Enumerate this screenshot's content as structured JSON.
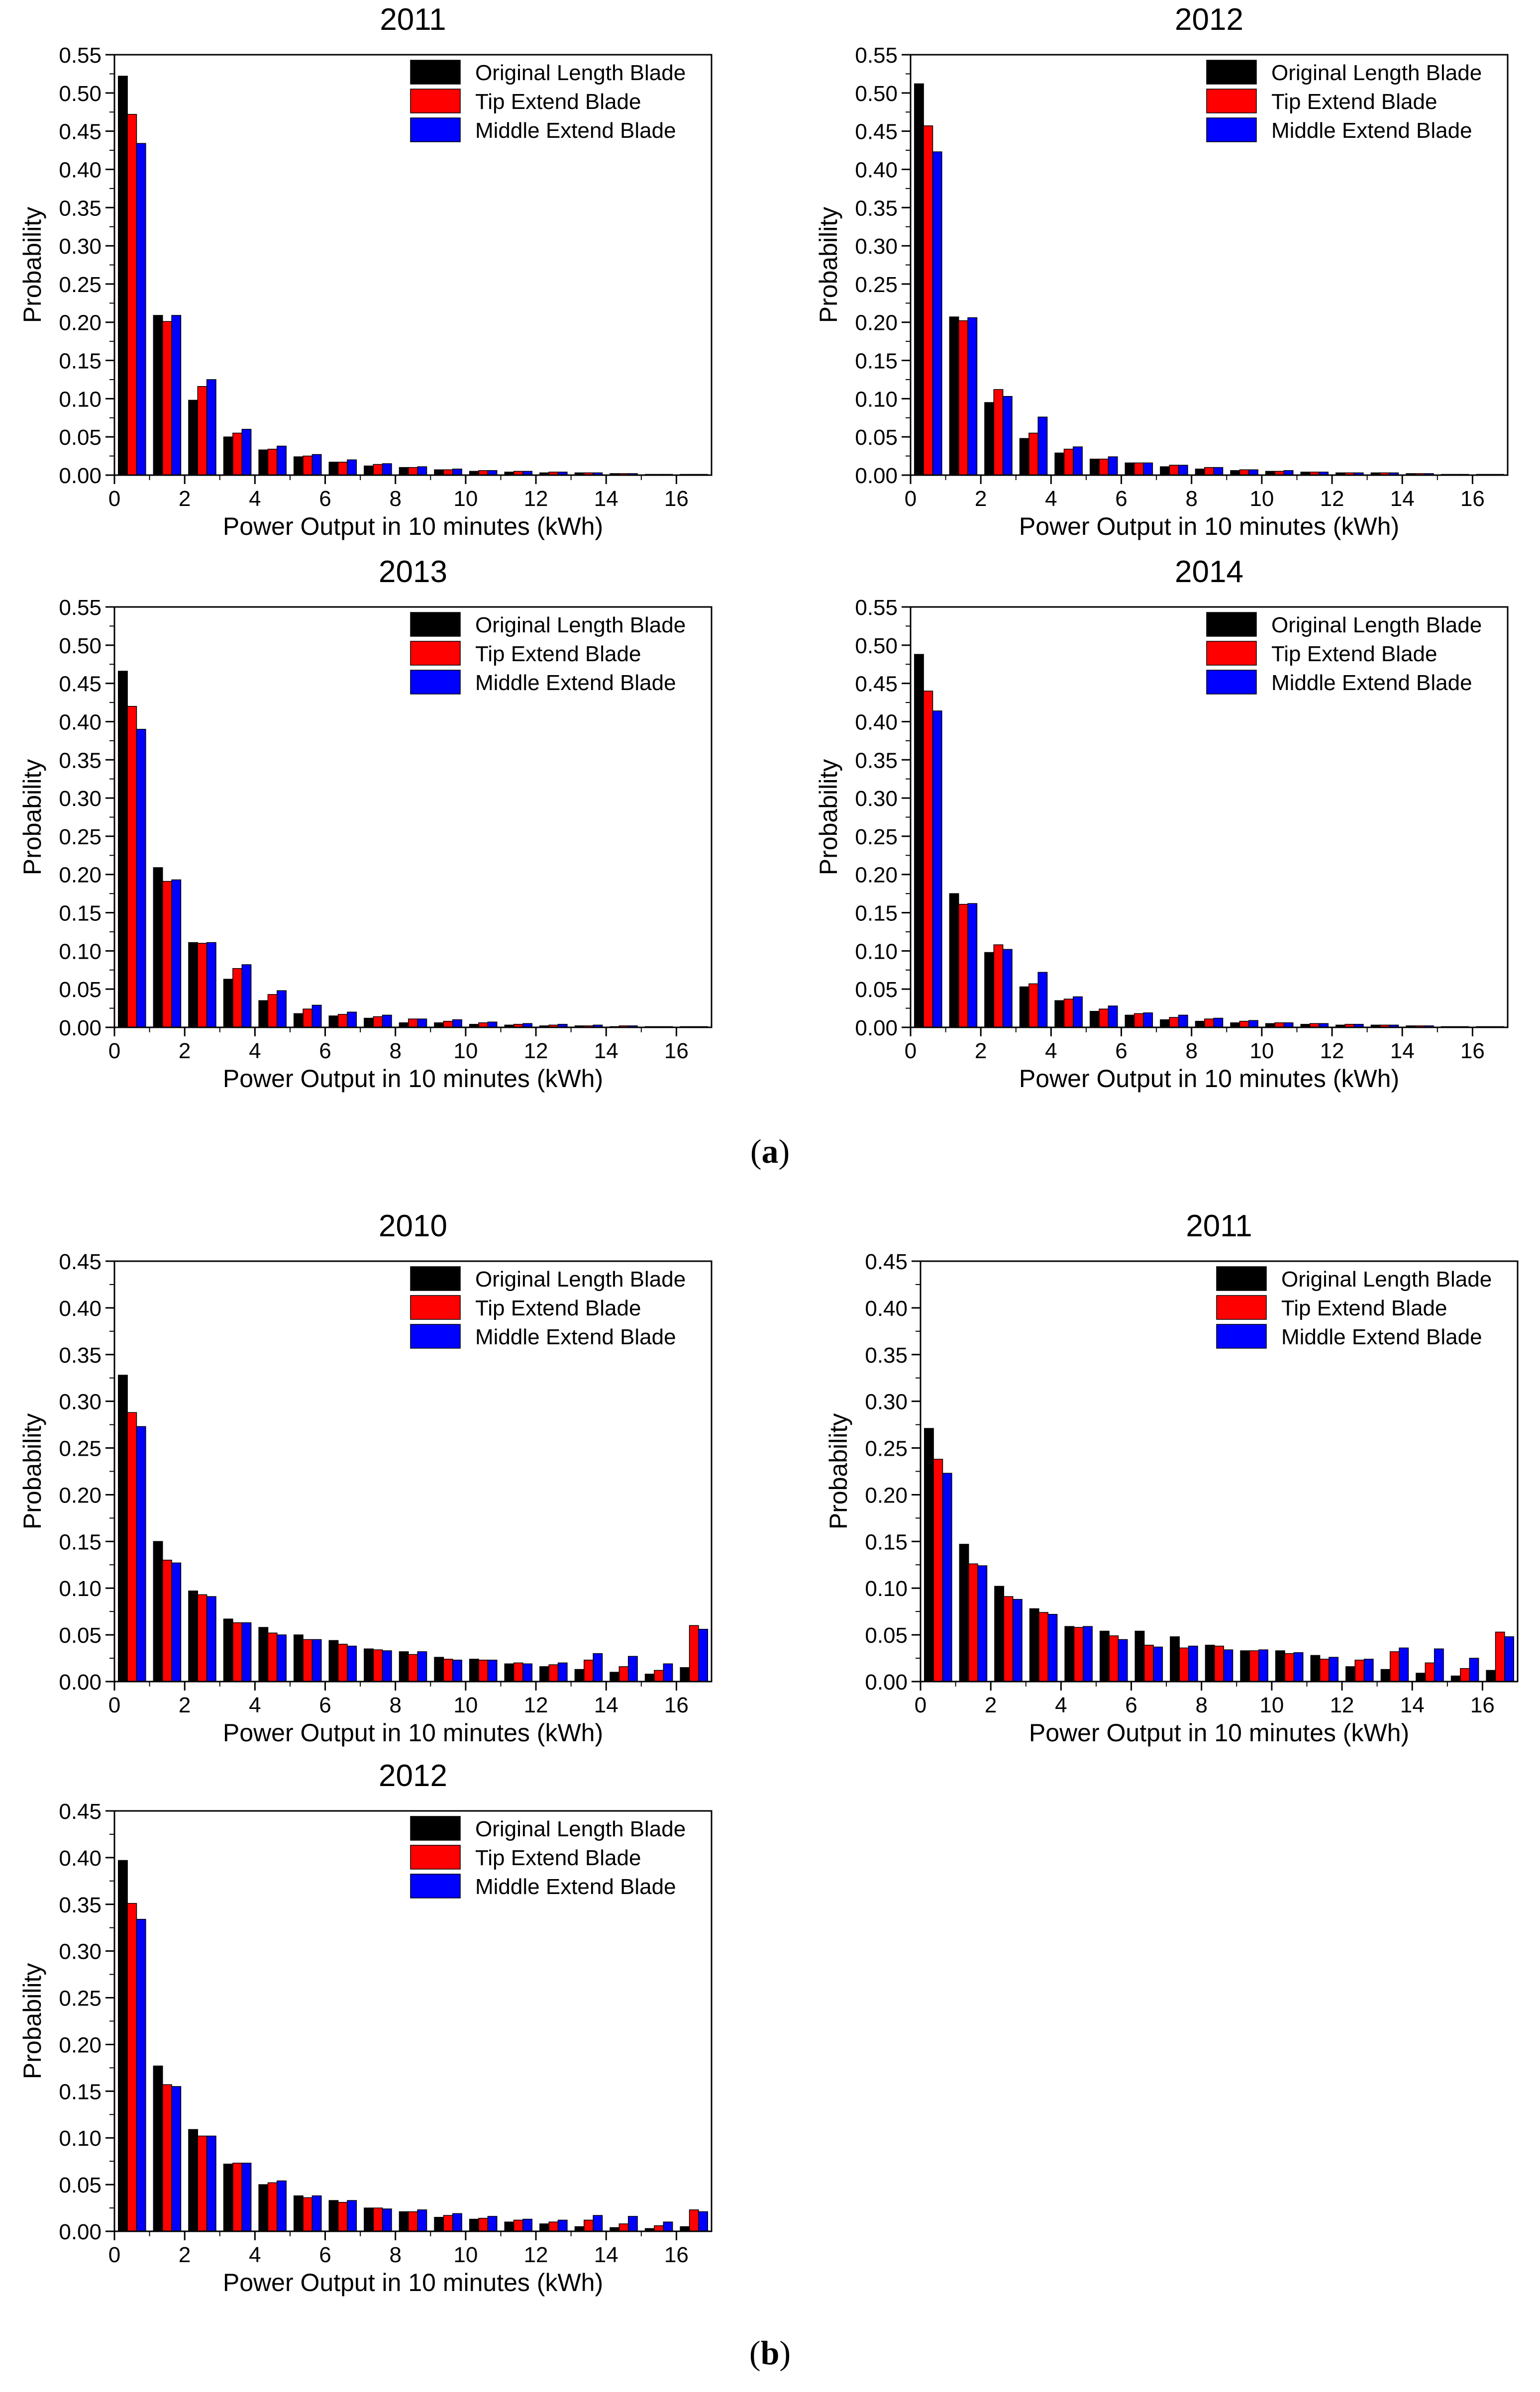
{
  "colors": {
    "series": [
      "#000000",
      "#ff0000",
      "#0000ff"
    ],
    "axis": "#000000"
  },
  "parts": [
    {
      "open": "(",
      "letter": "a",
      "close": ")"
    },
    {
      "open": "(",
      "letter": "b",
      "close": ")"
    }
  ],
  "chart_data": [
    {
      "type": "bar",
      "title": "2011",
      "xlabel": "Power Output in 10 minutes (kWh)",
      "ylabel": "Probability",
      "xlim": [
        0,
        17
      ],
      "ylim": [
        0,
        0.55
      ],
      "xticks": [
        0,
        2,
        4,
        6,
        8,
        10,
        12,
        14,
        16
      ],
      "yticks": [
        "0.00",
        "0.05",
        "0.10",
        "0.15",
        "0.20",
        "0.25",
        "0.30",
        "0.35",
        "0.40",
        "0.45",
        "0.50",
        "0.55"
      ],
      "x": [
        0.5,
        1.5,
        2.5,
        3.5,
        4.5,
        5.5,
        6.5,
        7.5,
        8.5,
        9.5,
        10.5,
        11.5,
        12.5,
        13.5,
        14.5,
        15.5,
        16.5
      ],
      "legend": "top-right",
      "grid": false,
      "series": [
        {
          "name": "Original Length Blade",
          "values": [
            0.522,
            0.209,
            0.098,
            0.05,
            0.033,
            0.024,
            0.017,
            0.012,
            0.01,
            0.007,
            0.005,
            0.004,
            0.003,
            0.003,
            0.002,
            0.001,
            0.001
          ]
        },
        {
          "name": "Tip Extend Blade",
          "values": [
            0.472,
            0.201,
            0.116,
            0.055,
            0.034,
            0.025,
            0.017,
            0.014,
            0.01,
            0.007,
            0.006,
            0.005,
            0.004,
            0.003,
            0.002,
            0.001,
            0.001
          ]
        },
        {
          "name": "Middle Extend Blade",
          "values": [
            0.434,
            0.209,
            0.125,
            0.06,
            0.038,
            0.027,
            0.02,
            0.015,
            0.011,
            0.008,
            0.006,
            0.005,
            0.004,
            0.003,
            0.002,
            0.001,
            0.001
          ]
        }
      ]
    },
    {
      "type": "bar",
      "title": "2012",
      "xlabel": "Power Output in 10 minutes (kWh)",
      "ylabel": "Probability",
      "xlim": [
        0,
        17
      ],
      "ylim": [
        0,
        0.55
      ],
      "xticks": [
        0,
        2,
        4,
        6,
        8,
        10,
        12,
        14,
        16
      ],
      "yticks": [
        "0.00",
        "0.05",
        "0.10",
        "0.15",
        "0.20",
        "0.25",
        "0.30",
        "0.35",
        "0.40",
        "0.45",
        "0.50",
        "0.55"
      ],
      "x": [
        0.5,
        1.5,
        2.5,
        3.5,
        4.5,
        5.5,
        6.5,
        7.5,
        8.5,
        9.5,
        10.5,
        11.5,
        12.5,
        13.5,
        14.5,
        15.5,
        16.5
      ],
      "legend": "top-right",
      "grid": false,
      "series": [
        {
          "name": "Original Length Blade",
          "values": [
            0.512,
            0.207,
            0.095,
            0.048,
            0.029,
            0.021,
            0.016,
            0.011,
            0.008,
            0.006,
            0.005,
            0.004,
            0.003,
            0.003,
            0.002,
            0.001,
            0.001
          ]
        },
        {
          "name": "Tip Extend Blade",
          "values": [
            0.457,
            0.202,
            0.112,
            0.055,
            0.034,
            0.021,
            0.016,
            0.013,
            0.01,
            0.007,
            0.005,
            0.004,
            0.003,
            0.003,
            0.002,
            0.001,
            0.001
          ]
        },
        {
          "name": "Middle Extend Blade",
          "values": [
            0.423,
            0.206,
            0.103,
            0.076,
            0.037,
            0.024,
            0.016,
            0.013,
            0.01,
            0.007,
            0.006,
            0.004,
            0.003,
            0.003,
            0.002,
            0.001,
            0.001
          ]
        }
      ]
    },
    {
      "type": "bar",
      "title": "2013",
      "xlabel": "Power Output in 10 minutes (kWh)",
      "ylabel": "Probability",
      "xlim": [
        0,
        17
      ],
      "ylim": [
        0,
        0.55
      ],
      "xticks": [
        0,
        2,
        4,
        6,
        8,
        10,
        12,
        14,
        16
      ],
      "yticks": [
        "0.00",
        "0.05",
        "0.10",
        "0.15",
        "0.20",
        "0.25",
        "0.30",
        "0.35",
        "0.40",
        "0.45",
        "0.50",
        "0.55"
      ],
      "x": [
        0.5,
        1.5,
        2.5,
        3.5,
        4.5,
        5.5,
        6.5,
        7.5,
        8.5,
        9.5,
        10.5,
        11.5,
        12.5,
        13.5,
        14.5,
        15.5,
        16.5
      ],
      "legend": "top-right",
      "grid": false,
      "series": [
        {
          "name": "Original Length Blade",
          "values": [
            0.466,
            0.209,
            0.111,
            0.063,
            0.035,
            0.018,
            0.015,
            0.012,
            0.006,
            0.006,
            0.004,
            0.003,
            0.002,
            0.002,
            0.001,
            0.001,
            0.001
          ]
        },
        {
          "name": "Tip Extend Blade",
          "values": [
            0.42,
            0.191,
            0.11,
            0.077,
            0.043,
            0.024,
            0.017,
            0.014,
            0.011,
            0.008,
            0.006,
            0.004,
            0.003,
            0.002,
            0.002,
            0.001,
            0.001
          ]
        },
        {
          "name": "Middle Extend Blade",
          "values": [
            0.39,
            0.193,
            0.111,
            0.082,
            0.048,
            0.029,
            0.02,
            0.016,
            0.011,
            0.01,
            0.007,
            0.005,
            0.004,
            0.003,
            0.002,
            0.001,
            0.001
          ]
        }
      ]
    },
    {
      "type": "bar",
      "title": "2014",
      "xlabel": "Power Output in 10 minutes (kWh)",
      "ylabel": "Probability",
      "xlim": [
        0,
        17
      ],
      "ylim": [
        0,
        0.55
      ],
      "xticks": [
        0,
        2,
        4,
        6,
        8,
        10,
        12,
        14,
        16
      ],
      "yticks": [
        "0.00",
        "0.05",
        "0.10",
        "0.15",
        "0.20",
        "0.25",
        "0.30",
        "0.35",
        "0.40",
        "0.45",
        "0.50",
        "0.55"
      ],
      "x": [
        0.5,
        1.5,
        2.5,
        3.5,
        4.5,
        5.5,
        6.5,
        7.5,
        8.5,
        9.5,
        10.5,
        11.5,
        12.5,
        13.5,
        14.5,
        15.5,
        16.5
      ],
      "legend": "top-right",
      "grid": false,
      "series": [
        {
          "name": "Original Length Blade",
          "values": [
            0.488,
            0.175,
            0.098,
            0.053,
            0.035,
            0.021,
            0.016,
            0.01,
            0.008,
            0.006,
            0.005,
            0.004,
            0.003,
            0.003,
            0.002,
            0.001,
            0.001
          ]
        },
        {
          "name": "Tip Extend Blade",
          "values": [
            0.44,
            0.161,
            0.108,
            0.057,
            0.037,
            0.024,
            0.018,
            0.013,
            0.011,
            0.008,
            0.006,
            0.005,
            0.004,
            0.003,
            0.002,
            0.001,
            0.001
          ]
        },
        {
          "name": "Middle Extend Blade",
          "values": [
            0.414,
            0.162,
            0.102,
            0.072,
            0.04,
            0.028,
            0.019,
            0.016,
            0.012,
            0.009,
            0.006,
            0.005,
            0.004,
            0.003,
            0.002,
            0.001,
            0.001
          ]
        }
      ]
    },
    {
      "type": "bar",
      "title": "2010",
      "xlabel": "Power Output in 10 minutes (kWh)",
      "ylabel": "Probability",
      "xlim": [
        0,
        17
      ],
      "ylim": [
        0,
        0.45
      ],
      "xticks": [
        0,
        2,
        4,
        6,
        8,
        10,
        12,
        14,
        16
      ],
      "yticks": [
        "0.00",
        "0.05",
        "0.10",
        "0.15",
        "0.20",
        "0.25",
        "0.30",
        "0.35",
        "0.40",
        "0.45"
      ],
      "x": [
        0.5,
        1.5,
        2.5,
        3.5,
        4.5,
        5.5,
        6.5,
        7.5,
        8.5,
        9.5,
        10.5,
        11.5,
        12.5,
        13.5,
        14.5,
        15.5,
        16.5
      ],
      "legend": "top-right",
      "grid": false,
      "series": [
        {
          "name": "Original Length Blade",
          "values": [
            0.328,
            0.15,
            0.097,
            0.067,
            0.058,
            0.05,
            0.044,
            0.035,
            0.032,
            0.026,
            0.024,
            0.019,
            0.016,
            0.013,
            0.01,
            0.008,
            0.015
          ]
        },
        {
          "name": "Tip Extend Blade",
          "values": [
            0.288,
            0.13,
            0.093,
            0.063,
            0.052,
            0.045,
            0.04,
            0.034,
            0.029,
            0.024,
            0.023,
            0.02,
            0.018,
            0.023,
            0.016,
            0.012,
            0.06
          ]
        },
        {
          "name": "Middle Extend Blade",
          "values": [
            0.273,
            0.127,
            0.091,
            0.063,
            0.05,
            0.045,
            0.038,
            0.033,
            0.032,
            0.023,
            0.023,
            0.019,
            0.02,
            0.03,
            0.027,
            0.019,
            0.056
          ]
        }
      ]
    },
    {
      "type": "bar",
      "title": "2011",
      "xlabel": "Power Output in 10 minutes (kWh)",
      "ylabel": "Probability",
      "xlim": [
        0,
        17
      ],
      "ylim": [
        0,
        0.45
      ],
      "xticks": [
        0,
        2,
        4,
        6,
        8,
        10,
        12,
        14,
        16
      ],
      "yticks": [
        "0.00",
        "0.05",
        "0.10",
        "0.15",
        "0.20",
        "0.25",
        "0.30",
        "0.35",
        "0.40",
        "0.45"
      ],
      "x": [
        0.5,
        1.5,
        2.5,
        3.5,
        4.5,
        5.5,
        6.5,
        7.5,
        8.5,
        9.5,
        10.5,
        11.5,
        12.5,
        13.5,
        14.5,
        15.5,
        16.5
      ],
      "legend": "top-right",
      "grid": false,
      "series": [
        {
          "name": "Original Length Blade",
          "values": [
            0.271,
            0.147,
            0.102,
            0.078,
            0.059,
            0.054,
            0.054,
            0.048,
            0.039,
            0.033,
            0.033,
            0.028,
            0.016,
            0.013,
            0.009,
            0.006,
            0.012
          ]
        },
        {
          "name": "Tip Extend Blade",
          "values": [
            0.238,
            0.126,
            0.091,
            0.074,
            0.058,
            0.049,
            0.039,
            0.036,
            0.038,
            0.033,
            0.03,
            0.024,
            0.023,
            0.032,
            0.02,
            0.014,
            0.053
          ]
        },
        {
          "name": "Middle Extend Blade",
          "values": [
            0.223,
            0.124,
            0.088,
            0.072,
            0.059,
            0.045,
            0.037,
            0.038,
            0.034,
            0.034,
            0.031,
            0.026,
            0.024,
            0.036,
            0.035,
            0.025,
            0.048
          ]
        }
      ]
    },
    {
      "type": "bar",
      "title": "2012",
      "xlabel": "Power Output in 10 minutes (kWh)",
      "ylabel": "Probability",
      "xlim": [
        0,
        17
      ],
      "ylim": [
        0,
        0.45
      ],
      "xticks": [
        0,
        2,
        4,
        6,
        8,
        10,
        12,
        14,
        16
      ],
      "yticks": [
        "0.00",
        "0.05",
        "0.10",
        "0.15",
        "0.20",
        "0.25",
        "0.30",
        "0.35",
        "0.40",
        "0.45"
      ],
      "x": [
        0.5,
        1.5,
        2.5,
        3.5,
        4.5,
        5.5,
        6.5,
        7.5,
        8.5,
        9.5,
        10.5,
        11.5,
        12.5,
        13.5,
        14.5,
        15.5,
        16.5
      ],
      "legend": "top-right",
      "grid": false,
      "series": [
        {
          "name": "Original Length Blade",
          "values": [
            0.397,
            0.177,
            0.109,
            0.072,
            0.05,
            0.038,
            0.033,
            0.025,
            0.021,
            0.015,
            0.013,
            0.01,
            0.008,
            0.005,
            0.004,
            0.003,
            0.005
          ]
        },
        {
          "name": "Tip Extend Blade",
          "values": [
            0.351,
            0.157,
            0.102,
            0.073,
            0.052,
            0.036,
            0.031,
            0.025,
            0.021,
            0.017,
            0.014,
            0.012,
            0.01,
            0.012,
            0.008,
            0.006,
            0.023
          ]
        },
        {
          "name": "Middle Extend Blade",
          "values": [
            0.334,
            0.155,
            0.102,
            0.073,
            0.054,
            0.038,
            0.033,
            0.024,
            0.023,
            0.019,
            0.016,
            0.013,
            0.012,
            0.017,
            0.016,
            0.01,
            0.021
          ]
        }
      ]
    }
  ]
}
